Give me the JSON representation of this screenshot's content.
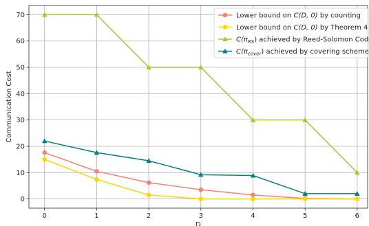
{
  "chart_data": {
    "type": "line",
    "xlabel": "D",
    "ylabel": "Communication Cost",
    "x": [
      0,
      1,
      2,
      3,
      4,
      5,
      6
    ],
    "xlim": [
      -0.3,
      6.2
    ],
    "ylim": [
      -3.5,
      73.5
    ],
    "xticks": [
      0,
      1,
      2,
      3,
      4,
      5,
      6
    ],
    "yticks": [
      0,
      10,
      20,
      30,
      40,
      50,
      60,
      70
    ],
    "grid": true,
    "legend_position": "top-right",
    "series": [
      {
        "name": "Lower bound on C(D, 0) by counting",
        "color": "#fa8072",
        "marker": "circle",
        "values": [
          17.6,
          10.5,
          6.2,
          3.5,
          1.5,
          0.2,
          0.0
        ]
      },
      {
        "name": "Lower bound on C(D, 0) by Theorem 4",
        "color": "#ffd700",
        "marker": "circle",
        "values": [
          15.0,
          7.4,
          1.5,
          0.0,
          0.0,
          0.0,
          0.0
        ]
      },
      {
        "name": "C(π_RS) achieved by Reed-Solomon Code",
        "color": "#9acd32",
        "marker": "triangle",
        "values": [
          70,
          70,
          50,
          50,
          30,
          30,
          10
        ]
      },
      {
        "name": "C(π_cover) achieved by covering scheme",
        "color": "#008080",
        "marker": "triangle",
        "values": [
          22.0,
          17.6,
          14.5,
          9.2,
          8.9,
          2.0,
          2.0
        ]
      }
    ]
  },
  "legend": {
    "entries": [
      {
        "prefix": "Lower bound on ",
        "math": "C(D, 0)",
        "suffix": " by counting"
      },
      {
        "prefix": "Lower bound on ",
        "math": "C(D, 0)",
        "suffix": " by Theorem 4"
      },
      {
        "prefix": "",
        "math": "C(π",
        "sub": "RS",
        "math2": ")",
        "suffix": " achieved by Reed-Solomon Code"
      },
      {
        "prefix": "",
        "math": "C(π",
        "sub": "cover",
        "math2": ")",
        "suffix": " achieved by covering scheme"
      }
    ]
  }
}
